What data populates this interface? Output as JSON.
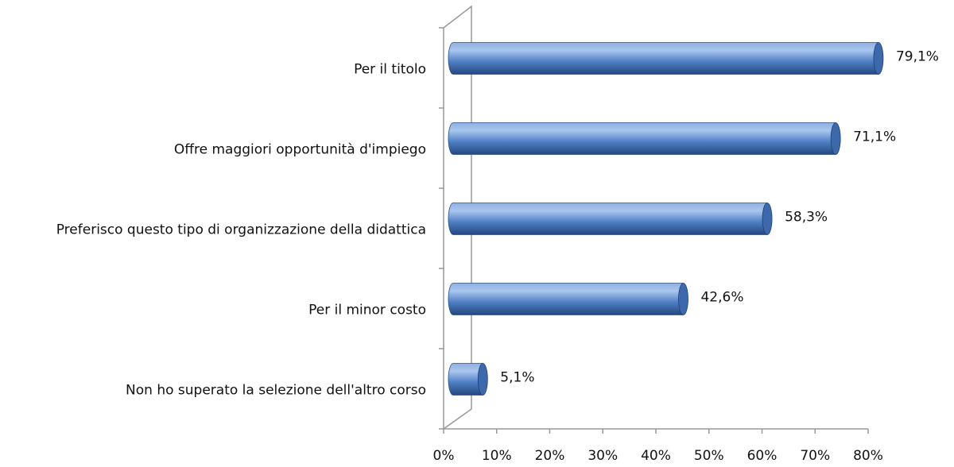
{
  "chart_data": {
    "type": "bar",
    "orientation": "horizontal",
    "categories": [
      "Per il titolo",
      "Offre maggiori opportunità d'impiego",
      "Preferisco questo tipo di organizzazione della didattica",
      "Per il minor costo",
      "Non ho superato la selezione dell'altro corso"
    ],
    "values": [
      79.1,
      71.1,
      58.3,
      42.6,
      5.1
    ],
    "value_labels": [
      "79,1%",
      "71,1%",
      "58,3%",
      "42,6%",
      "5,1%"
    ],
    "color": "#4f81bd",
    "xlim": [
      0,
      80
    ],
    "xticks": [
      {
        "value": 0,
        "label": "0%"
      },
      {
        "value": 10,
        "label": "10%"
      },
      {
        "value": 20,
        "label": "20%"
      },
      {
        "value": 30,
        "label": "30%"
      },
      {
        "value": 40,
        "label": "40%"
      },
      {
        "value": 50,
        "label": "50%"
      },
      {
        "value": 60,
        "label": "60%"
      },
      {
        "value": 70,
        "label": "70%"
      },
      {
        "value": 80,
        "label": "80%"
      }
    ]
  }
}
